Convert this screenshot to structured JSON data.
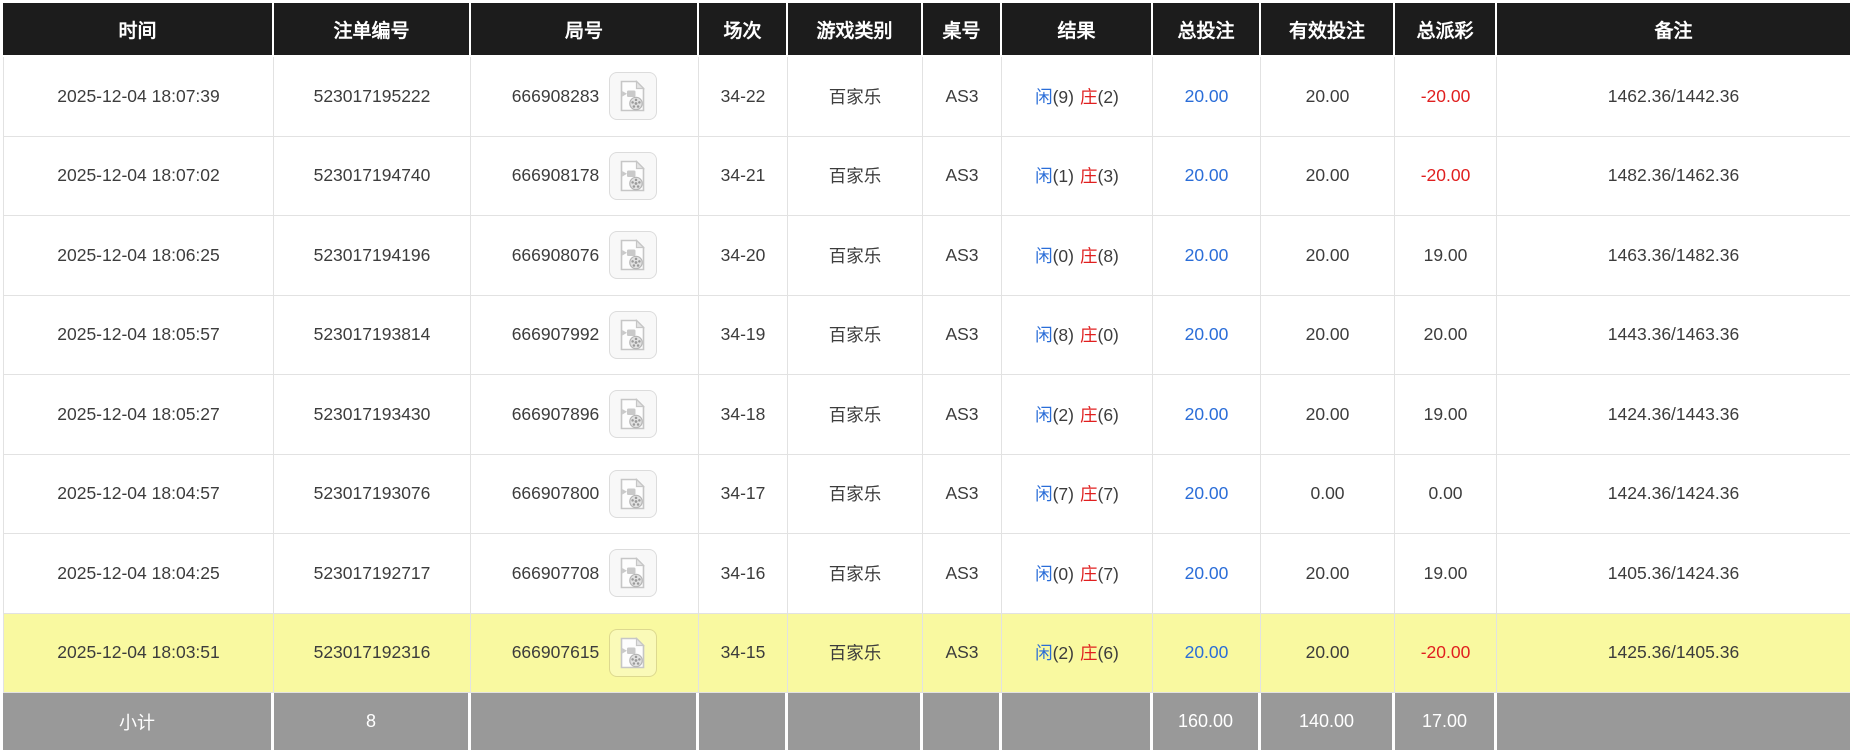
{
  "table": {
    "columns": [
      {
        "key": "time",
        "label": "时间"
      },
      {
        "key": "bet-id",
        "label": "注单编号"
      },
      {
        "key": "round-id",
        "label": "局号"
      },
      {
        "key": "session",
        "label": "场次"
      },
      {
        "key": "game-type",
        "label": "游戏类别"
      },
      {
        "key": "table-no",
        "label": "桌号"
      },
      {
        "key": "result",
        "label": "结果"
      },
      {
        "key": "total-bet",
        "label": "总投注"
      },
      {
        "key": "valid-bet",
        "label": "有效投注"
      },
      {
        "key": "total-payout",
        "label": "总派彩"
      },
      {
        "key": "remark",
        "label": "备注"
      }
    ],
    "rows": [
      {
        "time": "2025-12-04 18:07:39",
        "bet_id": "523017195222",
        "round_id": "666908283",
        "has_video": true,
        "session": "34-22",
        "game_type": "百家乐",
        "table_no": "AS3",
        "result": {
          "player_label": "闲",
          "player_score": "(9)",
          "banker_label": "庄",
          "banker_score": "(2)"
        },
        "total_bet": "20.00",
        "valid_bet": "20.00",
        "total_payout": "-20.00",
        "remark": "1462.36/1442.36",
        "highlighted": false
      },
      {
        "time": "2025-12-04 18:07:02",
        "bet_id": "523017194740",
        "round_id": "666908178",
        "has_video": true,
        "session": "34-21",
        "game_type": "百家乐",
        "table_no": "AS3",
        "result": {
          "player_label": "闲",
          "player_score": "(1)",
          "banker_label": "庄",
          "banker_score": "(3)"
        },
        "total_bet": "20.00",
        "valid_bet": "20.00",
        "total_payout": "-20.00",
        "remark": "1482.36/1462.36",
        "highlighted": false
      },
      {
        "time": "2025-12-04 18:06:25",
        "bet_id": "523017194196",
        "round_id": "666908076",
        "has_video": true,
        "session": "34-20",
        "game_type": "百家乐",
        "table_no": "AS3",
        "result": {
          "player_label": "闲",
          "player_score": "(0)",
          "banker_label": "庄",
          "banker_score": "(8)"
        },
        "total_bet": "20.00",
        "valid_bet": "20.00",
        "total_payout": "19.00",
        "remark": "1463.36/1482.36",
        "highlighted": false
      },
      {
        "time": "2025-12-04 18:05:57",
        "bet_id": "523017193814",
        "round_id": "666907992",
        "has_video": true,
        "session": "34-19",
        "game_type": "百家乐",
        "table_no": "AS3",
        "result": {
          "player_label": "闲",
          "player_score": "(8)",
          "banker_label": "庄",
          "banker_score": "(0)"
        },
        "total_bet": "20.00",
        "valid_bet": "20.00",
        "total_payout": "20.00",
        "remark": "1443.36/1463.36",
        "highlighted": false
      },
      {
        "time": "2025-12-04 18:05:27",
        "bet_id": "523017193430",
        "round_id": "666907896",
        "has_video": true,
        "session": "34-18",
        "game_type": "百家乐",
        "table_no": "AS3",
        "result": {
          "player_label": "闲",
          "player_score": "(2)",
          "banker_label": "庄",
          "banker_score": "(6)"
        },
        "total_bet": "20.00",
        "valid_bet": "20.00",
        "total_payout": "19.00",
        "remark": "1424.36/1443.36",
        "highlighted": false
      },
      {
        "time": "2025-12-04 18:04:57",
        "bet_id": "523017193076",
        "round_id": "666907800",
        "has_video": true,
        "session": "34-17",
        "game_type": "百家乐",
        "table_no": "AS3",
        "result": {
          "player_label": "闲",
          "player_score": "(7)",
          "banker_label": "庄",
          "banker_score": "(7)"
        },
        "total_bet": "20.00",
        "valid_bet": "0.00",
        "total_payout": "0.00",
        "remark": "1424.36/1424.36",
        "highlighted": false
      },
      {
        "time": "2025-12-04 18:04:25",
        "bet_id": "523017192717",
        "round_id": "666907708",
        "has_video": true,
        "session": "34-16",
        "game_type": "百家乐",
        "table_no": "AS3",
        "result": {
          "player_label": "闲",
          "player_score": "(0)",
          "banker_label": "庄",
          "banker_score": "(7)"
        },
        "total_bet": "20.00",
        "valid_bet": "20.00",
        "total_payout": "19.00",
        "remark": "1405.36/1424.36",
        "highlighted": false
      },
      {
        "time": "2025-12-04 18:03:51",
        "bet_id": "523017192316",
        "round_id": "666907615",
        "has_video": true,
        "session": "34-15",
        "game_type": "百家乐",
        "table_no": "AS3",
        "result": {
          "player_label": "闲",
          "player_score": "(2)",
          "banker_label": "庄",
          "banker_score": "(6)"
        },
        "total_bet": "20.00",
        "valid_bet": "20.00",
        "total_payout": "-20.00",
        "remark": "1425.36/1405.36",
        "highlighted": true
      }
    ],
    "footer": {
      "label": "小计",
      "bet_count": "8",
      "total_bet": "160.00",
      "valid_bet": "140.00",
      "total_payout": "17.00"
    }
  },
  "icons": {
    "round_replay": "video-replay-icon"
  },
  "colors": {
    "header_bg": "#1c1c1c",
    "row_highlight": "#f9f9a0",
    "footer_bg": "#999999",
    "player_blue": "#2a6dd8",
    "banker_red": "#e01f1f",
    "bet_link_blue": "#2a6dd8",
    "payout_negative_red": "#e01f1f"
  }
}
